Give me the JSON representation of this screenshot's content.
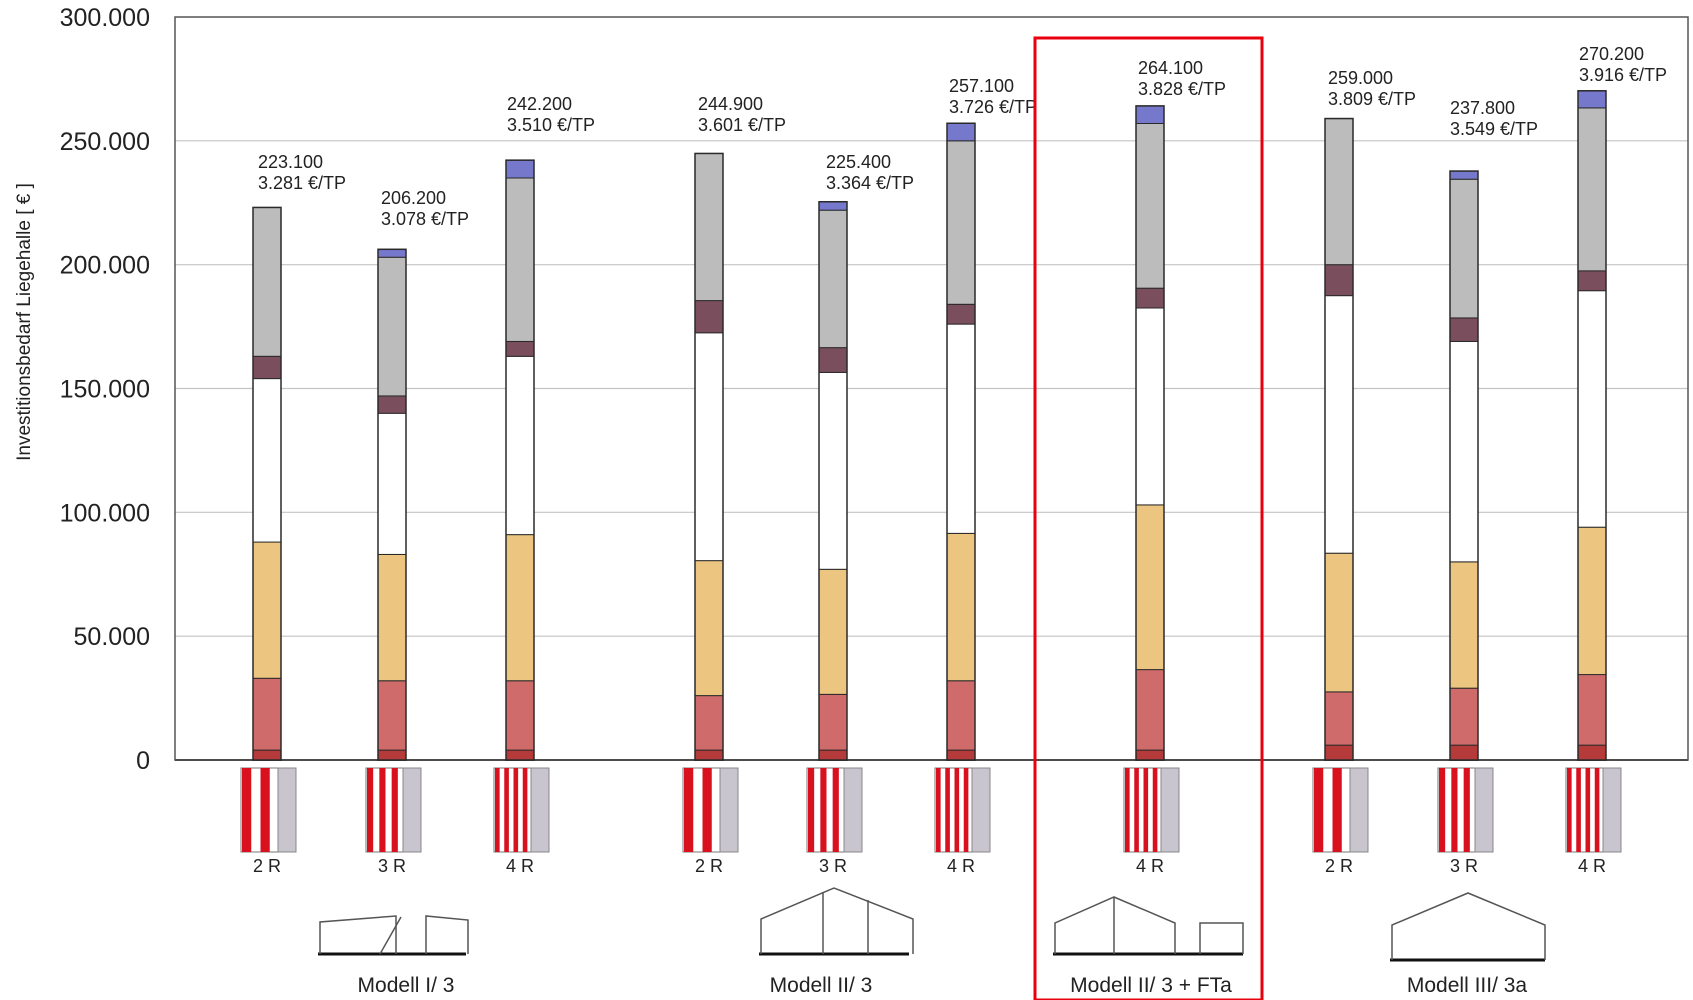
{
  "chart_data": {
    "type": "bar",
    "stacked": true,
    "ylabel": "Investitionsbedarf Liegehalle [ € ]",
    "ylim": [
      0,
      300000
    ],
    "yticks": [
      0,
      50000,
      100000,
      150000,
      200000,
      250000,
      300000
    ],
    "ytick_labels": [
      "0",
      "50.000",
      "100.000",
      "150.000",
      "200.000",
      "250.000",
      "300.000"
    ],
    "grid": true,
    "highlight_group": 2,
    "highlight_color": "#e8000e",
    "segment_colors": [
      "#b53a3a",
      "#cf6b6b",
      "#ecc680",
      "#ffffff",
      "#7b4e5e",
      "#bcbcbc",
      "#7678cc"
    ],
    "groups": [
      {
        "label": "Modell I/ 3",
        "bars": [
          {
            "category": "2 R",
            "total_label": "223.100",
            "per_tp_label": "3.281 €/TP",
            "segments": [
              4000,
              29000,
              55000,
              66000,
              9000,
              60100,
              0
            ]
          },
          {
            "category": "3 R",
            "total_label": "206.200",
            "per_tp_label": "3.078 €/TP",
            "segments": [
              4000,
              28000,
              51000,
              57000,
              7000,
              56000,
              3200
            ]
          },
          {
            "category": "4 R",
            "total_label": "242.200",
            "per_tp_label": "3.510 €/TP",
            "segments": [
              4000,
              28000,
              59000,
              72000,
              6000,
              66000,
              7200
            ]
          }
        ]
      },
      {
        "label": "Modell II/ 3",
        "bars": [
          {
            "category": "2 R",
            "total_label": "244.900",
            "per_tp_label": "3.601 €/TP",
            "segments": [
              4000,
              22000,
              54500,
              92000,
              13000,
              59400,
              0
            ]
          },
          {
            "category": "3 R",
            "total_label": "225.400",
            "per_tp_label": "3.364 €/TP",
            "segments": [
              4000,
              22500,
              50500,
              79500,
              10000,
              55500,
              3400
            ]
          },
          {
            "category": "4 R",
            "total_label": "257.100",
            "per_tp_label": "3.726 €/TP",
            "segments": [
              4000,
              28000,
              59500,
              84500,
              8000,
              66000,
              7100
            ]
          }
        ]
      },
      {
        "label": "Modell II/ 3 + FTa",
        "bars": [
          {
            "category": "4 R",
            "total_label": "264.100",
            "per_tp_label": "3.828 €/TP",
            "segments": [
              4000,
              32500,
              66500,
              79500,
              8000,
              66500,
              7100
            ]
          }
        ]
      },
      {
        "label": "Modell III/ 3a",
        "bars": [
          {
            "category": "2 R",
            "total_label": "259.000",
            "per_tp_label": "3.809 €/TP",
            "segments": [
              6000,
              21500,
              56000,
              104000,
              12500,
              59000,
              0
            ]
          },
          {
            "category": "3 R",
            "total_label": "237.800",
            "per_tp_label": "3.549 €/TP",
            "segments": [
              6000,
              23000,
              51000,
              89000,
              9500,
              56000,
              3300
            ]
          },
          {
            "category": "4 R",
            "total_label": "270.200",
            "per_tp_label": "3.916 €/TP",
            "segments": [
              6000,
              28500,
              59500,
              95500,
              8000,
              65800,
              6900
            ]
          }
        ]
      }
    ]
  }
}
